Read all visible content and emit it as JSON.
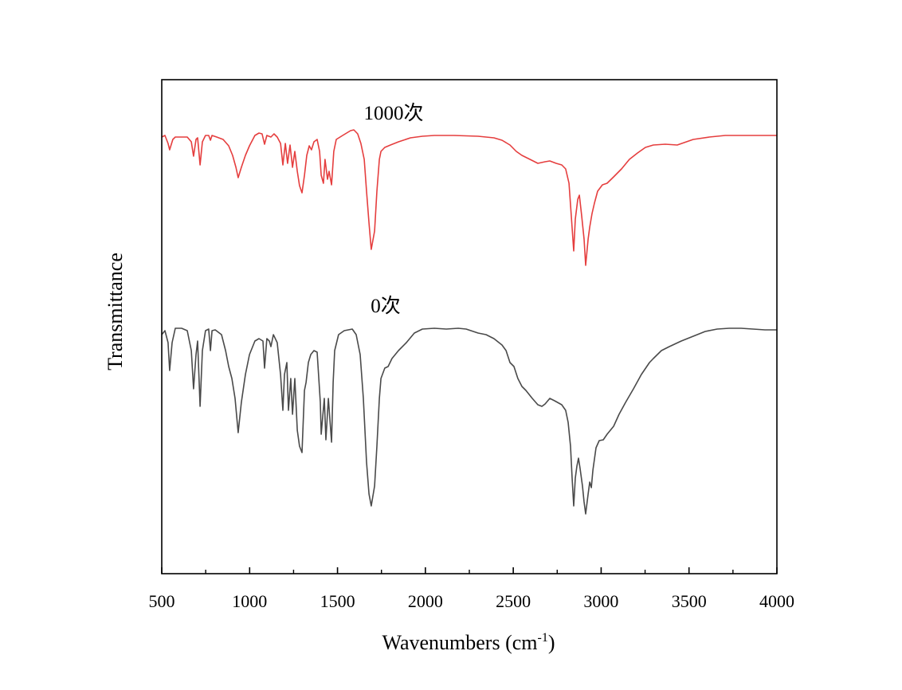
{
  "chart_data": {
    "type": "line",
    "title": "",
    "xlabel": "Wavenumbers (cm",
    "xlabel_sup": "-1",
    "xlabel_close": ")",
    "ylabel": "Transmittance",
    "xlim": [
      500,
      4000
    ],
    "ylim": [
      0,
      620
    ],
    "y_units": "arbitrary (no y tick labels shown)",
    "grid": false,
    "xticks": [
      500,
      1000,
      1500,
      2000,
      2500,
      3000,
      3500,
      4000
    ],
    "xtick_labels": [
      "500",
      "1000",
      "1500",
      "2000",
      "2500",
      "3000",
      "3500",
      "4000"
    ],
    "minor_xticks": [
      750,
      1250,
      1750,
      2250,
      2750,
      3250,
      3750
    ],
    "series": [
      {
        "name": "1000次",
        "color": "#e53e3e",
        "points": [
          [
            500,
            548
          ],
          [
            518,
            550
          ],
          [
            536,
            540
          ],
          [
            545,
            532
          ],
          [
            563,
            545
          ],
          [
            577,
            548
          ],
          [
            645,
            548
          ],
          [
            668,
            542
          ],
          [
            681,
            524
          ],
          [
            695,
            545
          ],
          [
            704,
            547
          ],
          [
            718,
            513
          ],
          [
            731,
            542
          ],
          [
            749,
            550
          ],
          [
            767,
            550
          ],
          [
            777,
            544
          ],
          [
            786,
            550
          ],
          [
            813,
            548
          ],
          [
            849,
            545
          ],
          [
            881,
            537
          ],
          [
            903,
            525
          ],
          [
            922,
            510
          ],
          [
            935,
            497
          ],
          [
            953,
            510
          ],
          [
            976,
            525
          ],
          [
            999,
            537
          ],
          [
            1030,
            550
          ],
          [
            1053,
            553
          ],
          [
            1071,
            552
          ],
          [
            1085,
            539
          ],
          [
            1098,
            550
          ],
          [
            1121,
            548
          ],
          [
            1139,
            552
          ],
          [
            1157,
            548
          ],
          [
            1176,
            540
          ],
          [
            1189,
            513
          ],
          [
            1203,
            540
          ],
          [
            1216,
            515
          ],
          [
            1230,
            538
          ],
          [
            1244,
            510
          ],
          [
            1257,
            530
          ],
          [
            1271,
            505
          ],
          [
            1284,
            487
          ],
          [
            1298,
            478
          ],
          [
            1312,
            500
          ],
          [
            1325,
            525
          ],
          [
            1339,
            537
          ],
          [
            1352,
            532
          ],
          [
            1366,
            542
          ],
          [
            1384,
            545
          ],
          [
            1398,
            530
          ],
          [
            1407,
            500
          ],
          [
            1420,
            490
          ],
          [
            1429,
            520
          ],
          [
            1443,
            495
          ],
          [
            1452,
            505
          ],
          [
            1466,
            488
          ],
          [
            1479,
            530
          ],
          [
            1493,
            545
          ],
          [
            1529,
            550
          ],
          [
            1574,
            556
          ],
          [
            1593,
            557
          ],
          [
            1615,
            552
          ],
          [
            1633,
            540
          ],
          [
            1652,
            520
          ],
          [
            1665,
            480
          ],
          [
            1679,
            440
          ],
          [
            1692,
            407
          ],
          [
            1711,
            430
          ],
          [
            1724,
            480
          ],
          [
            1738,
            520
          ],
          [
            1747,
            530
          ],
          [
            1769,
            535
          ],
          [
            1801,
            538
          ],
          [
            1847,
            542
          ],
          [
            1915,
            547
          ],
          [
            1983,
            549
          ],
          [
            2051,
            550
          ],
          [
            2164,
            550
          ],
          [
            2300,
            549
          ],
          [
            2390,
            547
          ],
          [
            2436,
            544
          ],
          [
            2481,
            538
          ],
          [
            2517,
            530
          ],
          [
            2549,
            525
          ],
          [
            2595,
            520
          ],
          [
            2640,
            515
          ],
          [
            2681,
            517
          ],
          [
            2708,
            518
          ],
          [
            2744,
            515
          ],
          [
            2776,
            513
          ],
          [
            2798,
            508
          ],
          [
            2817,
            490
          ],
          [
            2830,
            450
          ],
          [
            2844,
            405
          ],
          [
            2853,
            445
          ],
          [
            2867,
            470
          ],
          [
            2876,
            475
          ],
          [
            2889,
            450
          ],
          [
            2903,
            420
          ],
          [
            2912,
            387
          ],
          [
            2926,
            420
          ],
          [
            2935,
            435
          ],
          [
            2948,
            452
          ],
          [
            2962,
            465
          ],
          [
            2980,
            480
          ],
          [
            3007,
            488
          ],
          [
            3034,
            490
          ],
          [
            3071,
            498
          ],
          [
            3116,
            508
          ],
          [
            3161,
            520
          ],
          [
            3207,
            528
          ],
          [
            3252,
            535
          ],
          [
            3297,
            538
          ],
          [
            3365,
            539
          ],
          [
            3433,
            538
          ],
          [
            3524,
            545
          ],
          [
            3615,
            548
          ],
          [
            3706,
            550
          ],
          [
            3796,
            550
          ],
          [
            3887,
            550
          ],
          [
            4000,
            550
          ]
        ]
      },
      {
        "name": "0次",
        "color": "#4a4a4a",
        "points": [
          [
            500,
            300
          ],
          [
            518,
            305
          ],
          [
            536,
            290
          ],
          [
            545,
            255
          ],
          [
            559,
            290
          ],
          [
            577,
            308
          ],
          [
            613,
            308
          ],
          [
            645,
            305
          ],
          [
            668,
            280
          ],
          [
            681,
            232
          ],
          [
            695,
            275
          ],
          [
            704,
            292
          ],
          [
            718,
            210
          ],
          [
            731,
            280
          ],
          [
            749,
            305
          ],
          [
            767,
            307
          ],
          [
            777,
            280
          ],
          [
            786,
            305
          ],
          [
            804,
            306
          ],
          [
            840,
            300
          ],
          [
            863,
            280
          ],
          [
            881,
            260
          ],
          [
            899,
            245
          ],
          [
            917,
            220
          ],
          [
            935,
            177
          ],
          [
            953,
            215
          ],
          [
            976,
            250
          ],
          [
            999,
            275
          ],
          [
            1030,
            292
          ],
          [
            1053,
            295
          ],
          [
            1076,
            292
          ],
          [
            1085,
            258
          ],
          [
            1098,
            295
          ],
          [
            1112,
            292
          ],
          [
            1121,
            285
          ],
          [
            1135,
            300
          ],
          [
            1157,
            290
          ],
          [
            1176,
            250
          ],
          [
            1189,
            205
          ],
          [
            1198,
            250
          ],
          [
            1212,
            265
          ],
          [
            1221,
            205
          ],
          [
            1234,
            245
          ],
          [
            1244,
            200
          ],
          [
            1257,
            245
          ],
          [
            1271,
            180
          ],
          [
            1284,
            160
          ],
          [
            1298,
            152
          ],
          [
            1312,
            230
          ],
          [
            1321,
            240
          ],
          [
            1334,
            265
          ],
          [
            1348,
            275
          ],
          [
            1366,
            280
          ],
          [
            1384,
            278
          ],
          [
            1402,
            215
          ],
          [
            1407,
            175
          ],
          [
            1425,
            220
          ],
          [
            1434,
            168
          ],
          [
            1448,
            220
          ],
          [
            1466,
            165
          ],
          [
            1475,
            240
          ],
          [
            1484,
            280
          ],
          [
            1506,
            300
          ],
          [
            1538,
            305
          ],
          [
            1584,
            307
          ],
          [
            1606,
            300
          ],
          [
            1629,
            275
          ],
          [
            1647,
            220
          ],
          [
            1665,
            140
          ],
          [
            1679,
            100
          ],
          [
            1692,
            85
          ],
          [
            1711,
            110
          ],
          [
            1724,
            160
          ],
          [
            1738,
            220
          ],
          [
            1747,
            245
          ],
          [
            1769,
            258
          ],
          [
            1788,
            260
          ],
          [
            1810,
            270
          ],
          [
            1847,
            280
          ],
          [
            1892,
            290
          ],
          [
            1937,
            302
          ],
          [
            1983,
            307
          ],
          [
            2051,
            308
          ],
          [
            2119,
            307
          ],
          [
            2187,
            308
          ],
          [
            2232,
            307
          ],
          [
            2300,
            302
          ],
          [
            2345,
            300
          ],
          [
            2390,
            295
          ],
          [
            2436,
            287
          ],
          [
            2459,
            280
          ],
          [
            2481,
            265
          ],
          [
            2504,
            260
          ],
          [
            2526,
            245
          ],
          [
            2549,
            235
          ],
          [
            2572,
            230
          ],
          [
            2608,
            220
          ],
          [
            2640,
            212
          ],
          [
            2663,
            210
          ],
          [
            2681,
            213
          ],
          [
            2708,
            220
          ],
          [
            2735,
            217
          ],
          [
            2776,
            212
          ],
          [
            2798,
            205
          ],
          [
            2812,
            190
          ],
          [
            2826,
            160
          ],
          [
            2835,
            120
          ],
          [
            2844,
            85
          ],
          [
            2853,
            120
          ],
          [
            2862,
            135
          ],
          [
            2871,
            145
          ],
          [
            2880,
            132
          ],
          [
            2894,
            110
          ],
          [
            2903,
            90
          ],
          [
            2912,
            75
          ],
          [
            2926,
            100
          ],
          [
            2935,
            115
          ],
          [
            2944,
            108
          ],
          [
            2953,
            130
          ],
          [
            2971,
            158
          ],
          [
            2989,
            167
          ],
          [
            3012,
            168
          ],
          [
            3034,
            175
          ],
          [
            3071,
            185
          ],
          [
            3102,
            200
          ],
          [
            3139,
            215
          ],
          [
            3184,
            232
          ],
          [
            3229,
            250
          ],
          [
            3275,
            265
          ],
          [
            3297,
            270
          ],
          [
            3343,
            280
          ],
          [
            3388,
            285
          ],
          [
            3456,
            292
          ],
          [
            3524,
            298
          ],
          [
            3592,
            304
          ],
          [
            3660,
            307
          ],
          [
            3728,
            308
          ],
          [
            3796,
            308
          ],
          [
            3864,
            307
          ],
          [
            3932,
            306
          ],
          [
            4000,
            306
          ]
        ]
      }
    ],
    "annotations": [
      "1000次",
      "0次"
    ]
  }
}
